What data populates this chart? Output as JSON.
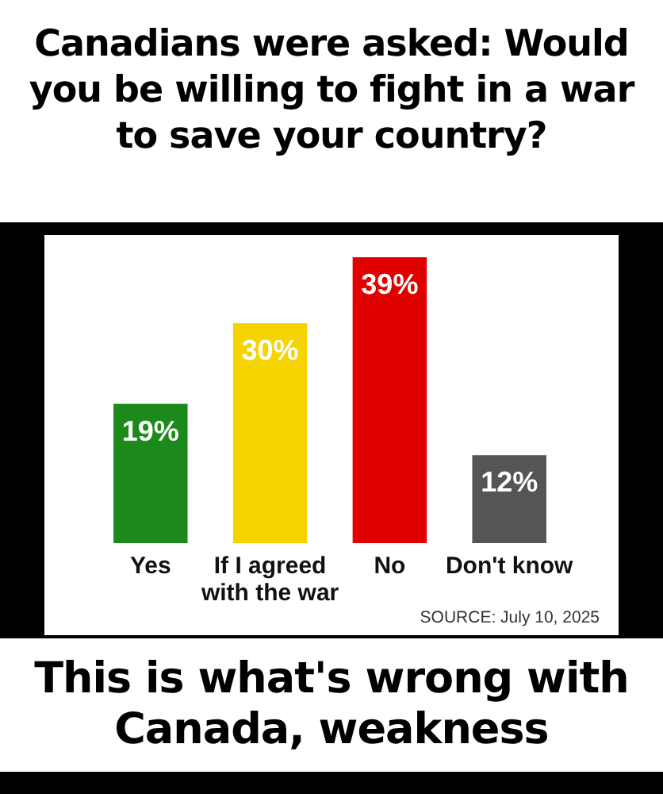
{
  "chart_data": {
    "type": "bar",
    "title": "Canadians were asked: Would you be willing to fight in a war to save your country?",
    "categories": [
      "Yes",
      "If I agreed with the war",
      "No",
      "Don't know"
    ],
    "values": [
      19,
      30,
      39,
      12
    ],
    "colors": [
      "#1b8a1b",
      "#f5d400",
      "#e00000",
      "#555555"
    ],
    "value_labels": [
      "19%",
      "30%",
      "39%",
      "12%"
    ],
    "annotations": [
      "SOURCE: July 10, 2025",
      "This is what's wrong with Canada, weakness"
    ]
  }
}
